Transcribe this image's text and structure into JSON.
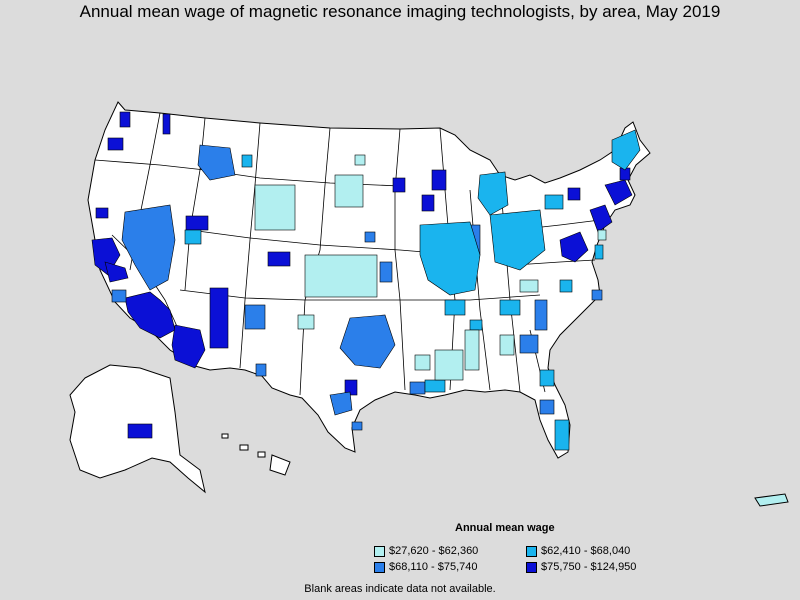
{
  "title": "Annual mean wage of magnetic resonance imaging technologists, by area, May 2019",
  "legend": {
    "title": "Annual mean wage",
    "items": [
      {
        "label": "$27,620 - $62,360",
        "color": "#b2eff0"
      },
      {
        "label": "$62,410 - $68,040",
        "color": "#1ab4ee"
      },
      {
        "label": "$68,110 - $75,740",
        "color": "#2b7fea"
      },
      {
        "label": "$75,750 - $124,950",
        "color": "#0b10d6"
      }
    ]
  },
  "note": "Blank areas indicate data not available.",
  "colors": {
    "background": "#dcdcdc",
    "land": "#ffffff",
    "border": "#000000",
    "tier1": "#b2eff0",
    "tier2": "#1ab4ee",
    "tier3": "#2b7fea",
    "tier4": "#0b10d6"
  }
}
